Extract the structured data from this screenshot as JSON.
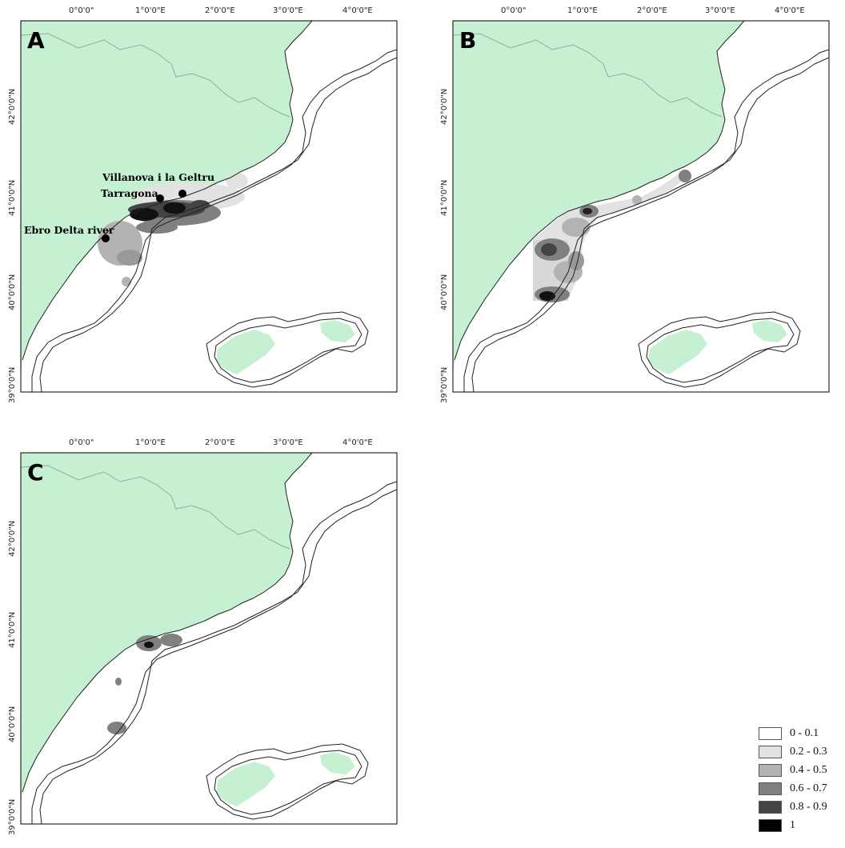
{
  "colors": {
    "land": "#c6f0d2",
    "sea": "#ffffff",
    "coast": "#222222",
    "border": "#8cab96"
  },
  "axes": {
    "lon_labels": [
      "0°0'0\"",
      "1°0'0\"E",
      "2°0'0\"E",
      "3°0'0\"E",
      "4°0'0\"E"
    ],
    "lat_labels": [
      "42°0'0\"N",
      "41°0'0\"N",
      "40°0'0\"N",
      "39°0'0\"N"
    ]
  },
  "panels": [
    {
      "label": "A",
      "places": [
        {
          "name": "Villanova i la Geltru"
        },
        {
          "name": "Tarragona"
        },
        {
          "name": "Ebro Delta river"
        }
      ]
    },
    {
      "label": "B",
      "places": []
    },
    {
      "label": "C",
      "places": []
    }
  ],
  "legend": {
    "items": [
      {
        "label": "0 - 0.1",
        "color": "#ffffff"
      },
      {
        "label": "0.2 - 0.3",
        "color": "#e2e2e2"
      },
      {
        "label": "0.4 - 0.5",
        "color": "#b3b3b3"
      },
      {
        "label": "0.6 - 0.7",
        "color": "#808080"
      },
      {
        "label": "0.8 - 0.9",
        "color": "#444444"
      },
      {
        "label": "1",
        "color": "#000000"
      }
    ]
  }
}
